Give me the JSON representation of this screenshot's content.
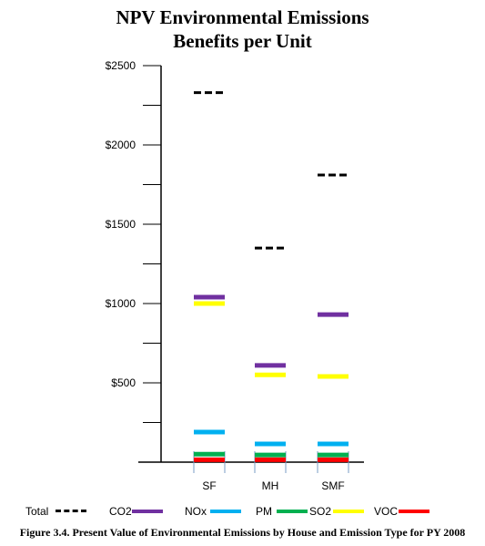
{
  "chart_data": {
    "type": "scatter",
    "title_line1": "NPV Environmental Emissions",
    "title_line2": "Benefits per Unit",
    "categories": [
      "SF",
      "MH",
      "SMF"
    ],
    "y_ticks": [
      {
        "value": 500,
        "label": "$500"
      },
      {
        "value": 1000,
        "label": "$1000"
      },
      {
        "value": 1500,
        "label": "$1500"
      },
      {
        "value": 2000,
        "label": "$2000"
      },
      {
        "value": 2500,
        "label": "$2500"
      }
    ],
    "ylim": [
      0,
      2500
    ],
    "series": [
      {
        "name": "Total",
        "color": "#000000",
        "style": "dashed",
        "values": [
          2330,
          1350,
          1810
        ]
      },
      {
        "name": "CO2",
        "color": "#7030a0",
        "style": "solid",
        "values": [
          1040,
          610,
          930
        ]
      },
      {
        "name": "NOx",
        "color": "#00b0f0",
        "style": "solid",
        "values": [
          190,
          115,
          115
        ]
      },
      {
        "name": "PM",
        "color": "#00b050",
        "style": "solid",
        "values": [
          50,
          45,
          45
        ]
      },
      {
        "name": "SO2",
        "color": "#ffff00",
        "style": "solid",
        "values": [
          1000,
          550,
          540
        ]
      },
      {
        "name": "VOC",
        "color": "#ff0000",
        "style": "solid",
        "values": [
          15,
          15,
          15
        ]
      }
    ]
  },
  "caption": "Figure 3.4. Present Value of Environmental Emissions by House and Emission Type for PY 2008"
}
